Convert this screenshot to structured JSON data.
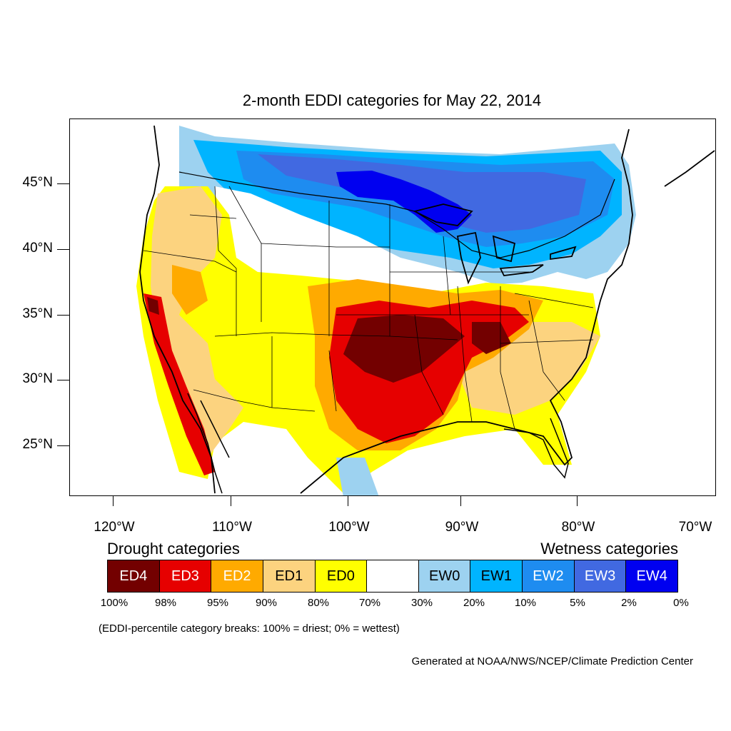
{
  "title": "2-month EDDI categories for May 22, 2014",
  "lat_labels": [
    "45°N",
    "40°N",
    "35°N",
    "30°N",
    "25°N"
  ],
  "lon_labels": [
    "120°W",
    "110°W",
    "100°W",
    "90°W",
    "80°W",
    "70°W"
  ],
  "drought_heading": "Drought categories",
  "wetness_heading": "Wetness categories",
  "legend": [
    {
      "label": "ED4",
      "color": "#730000",
      "text_color": "#ffffff"
    },
    {
      "label": "ED3",
      "color": "#e60000",
      "text_color": "#ffffff"
    },
    {
      "label": "ED2",
      "color": "#ffaa00",
      "text_color": "#ffffff"
    },
    {
      "label": "ED1",
      "color": "#fcd37f",
      "text_color": "#000000"
    },
    {
      "label": "ED0",
      "color": "#ffff00",
      "text_color": "#000000"
    },
    {
      "label": "",
      "color": "#ffffff",
      "text_color": "#000000"
    },
    {
      "label": "EW0",
      "color": "#9dd2f0",
      "text_color": "#000000"
    },
    {
      "label": "EW1",
      "color": "#00b4ff",
      "text_color": "#000000"
    },
    {
      "label": "EW2",
      "color": "#1e8cf0",
      "text_color": "#ffffff"
    },
    {
      "label": "EW3",
      "color": "#4169e1",
      "text_color": "#ffffff"
    },
    {
      "label": "EW4",
      "color": "#0000f0",
      "text_color": "#ffffff"
    }
  ],
  "percentile_breaks": [
    "100%",
    "98%",
    "95%",
    "90%",
    "80%",
    "70%",
    "30%",
    "20%",
    "10%",
    "5%",
    "2%",
    "0%"
  ],
  "note": "(EDDI-percentile category breaks: 100% = driest; 0% = wettest)",
  "credit": "Generated at NOAA/NWS/NCEP/Climate Prediction Center"
}
